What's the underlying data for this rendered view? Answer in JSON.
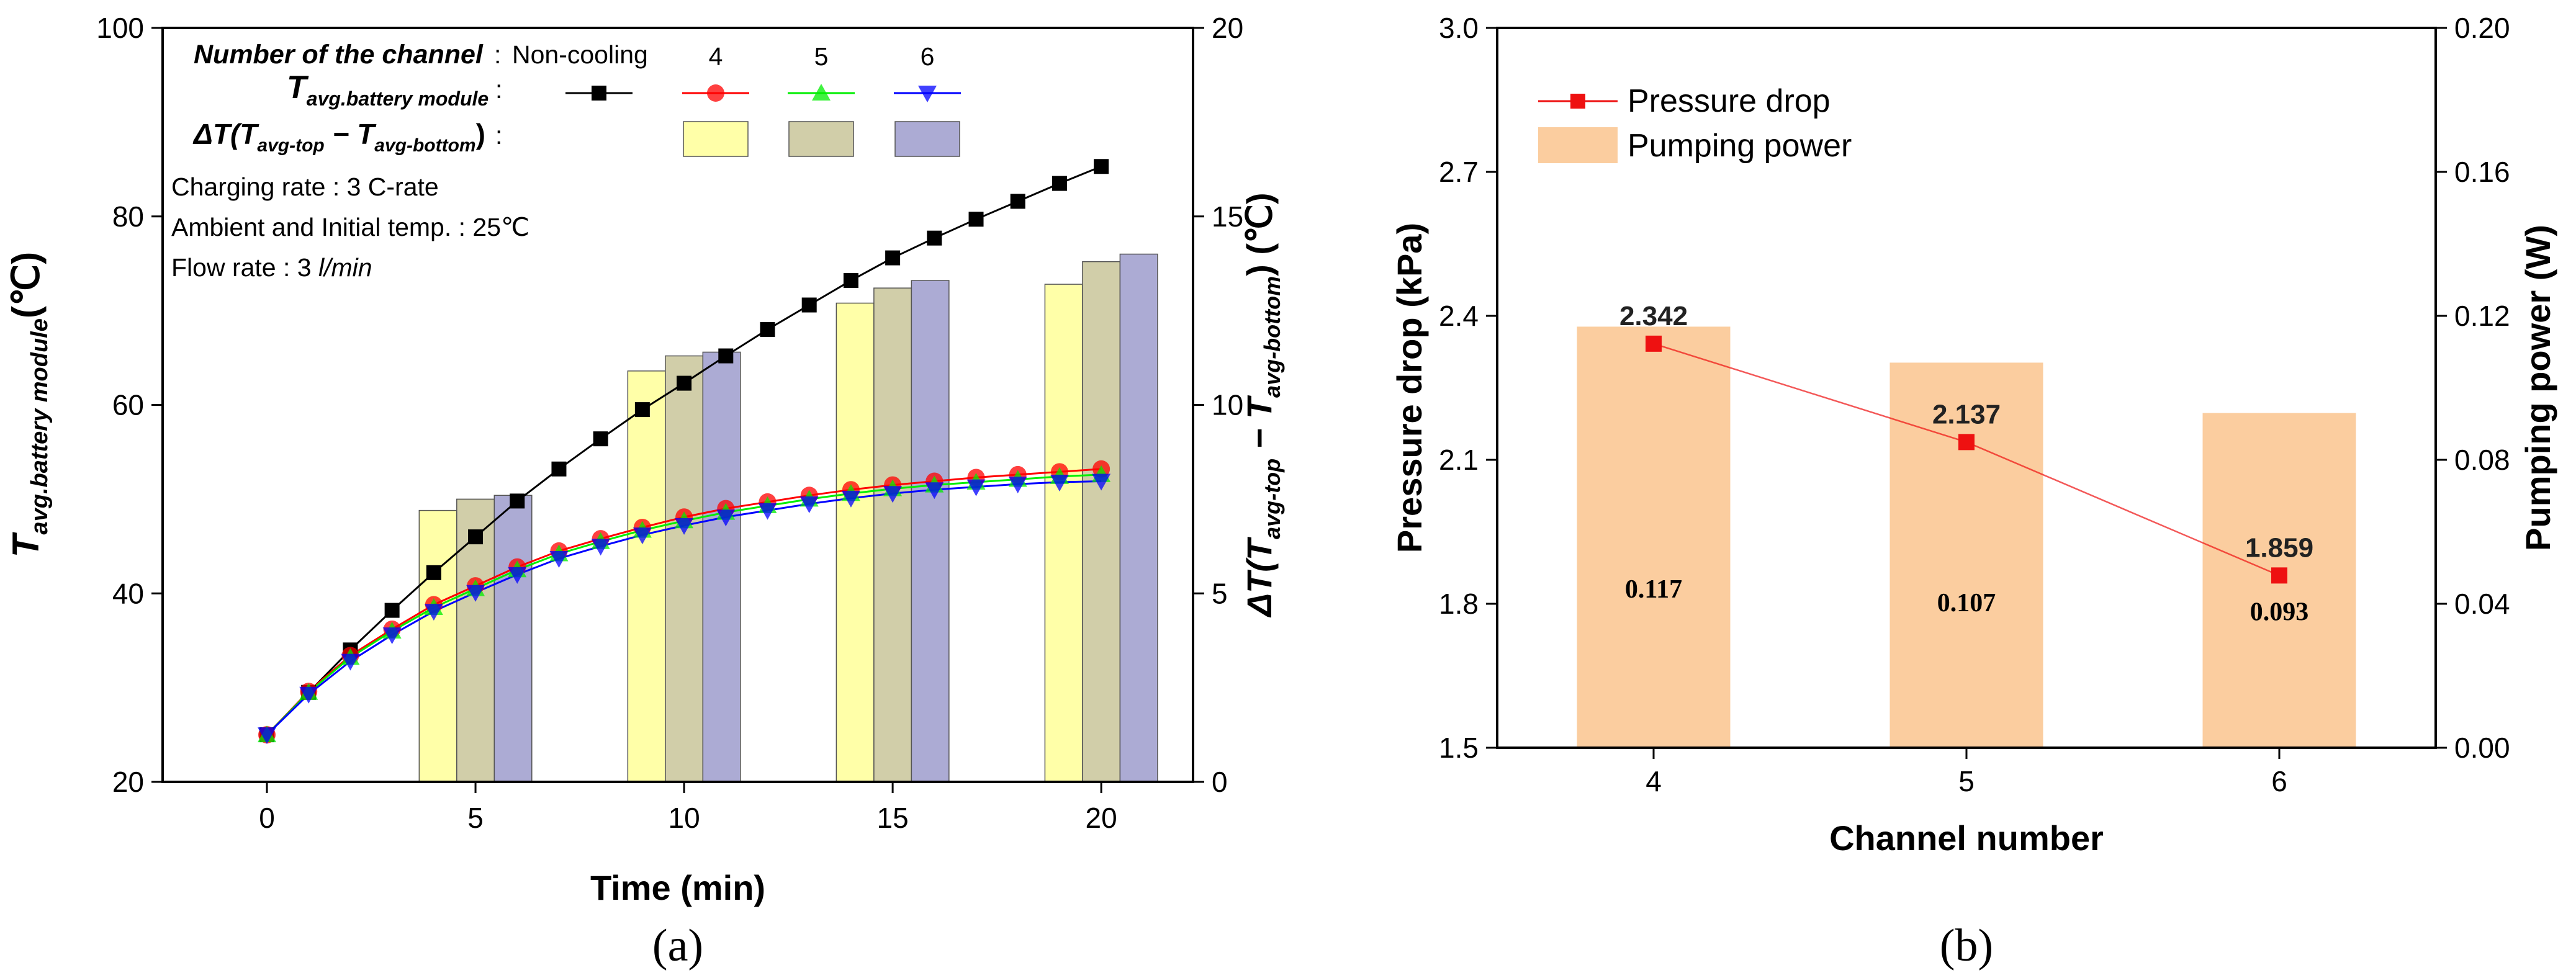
{
  "chart_data": [
    {
      "id": "a",
      "panel_label": "(a)",
      "type": "line+bar",
      "xlabel": "Time (min)",
      "ylabel": "T",
      "ylabel_sub": "avg.battery module",
      "ylabel_unit": "(℃)",
      "y2label": "ΔT(T",
      "y2label_sub1": "avg-top",
      "y2label_mid": " − T",
      "y2label_sub2": "avg-bottom",
      "y2label_unit": ") (℃)",
      "xlim": [
        -2.5,
        22.2
      ],
      "ylim": [
        20,
        100
      ],
      "y2lim": [
        0,
        20
      ],
      "xticks": [
        "0",
        "5",
        "10",
        "15",
        "20"
      ],
      "yticks": [
        "20",
        "40",
        "60",
        "80",
        "100"
      ],
      "y2ticks": [
        "0",
        "5",
        "10",
        "15",
        "20"
      ],
      "legend": {
        "header_label": "Number of the channel",
        "header_colon": ":",
        "header_noncooling": "Non-cooling",
        "header_4": "4",
        "header_5": "5",
        "header_6": "6",
        "row1_label": "T",
        "row1_sub": "avg.battery module",
        "row1_colon": ":",
        "row2_label": "ΔT(T",
        "row2_sub1": "avg-top",
        "row2_mid": " − T",
        "row2_sub2": "avg-bottom",
        "row2_end": ")",
        "row2_colon": ":"
      },
      "notes": [
        "Charging rate : 3 C-rate",
        "Ambient and Initial temp. : 25℃",
        "Flow rate : 3 "
      ],
      "note_flow_unit": "l/min",
      "series": [
        {
          "name": "Non-cooling",
          "color": "#000000",
          "marker": "square",
          "x": [
            0,
            1,
            2,
            3,
            4,
            5,
            6,
            7,
            8,
            9,
            10,
            11,
            12,
            13,
            14,
            15,
            16,
            17,
            18,
            19,
            20
          ],
          "values": [
            25,
            29.5,
            34,
            38.2,
            42.2,
            46,
            49.8,
            53.2,
            56.4,
            59.5,
            62.3,
            65.2,
            68,
            70.6,
            73.2,
            75.6,
            77.7,
            79.7,
            81.6,
            83.5,
            85.3
          ]
        },
        {
          "name": "4",
          "color": "#ff0000",
          "marker": "circle",
          "x": [
            0,
            1,
            2,
            3,
            4,
            5,
            6,
            7,
            8,
            9,
            10,
            11,
            12,
            13,
            14,
            15,
            16,
            17,
            18,
            19,
            20
          ],
          "values": [
            25,
            29.6,
            33.4,
            36.2,
            38.8,
            40.8,
            42.8,
            44.5,
            45.8,
            47,
            48.1,
            49,
            49.7,
            50.4,
            51,
            51.5,
            51.9,
            52.3,
            52.6,
            52.9,
            53.2
          ]
        },
        {
          "name": "5",
          "color": "#00ee00",
          "marker": "triangle-up",
          "x": [
            0,
            1,
            2,
            3,
            4,
            5,
            6,
            7,
            8,
            9,
            10,
            11,
            12,
            13,
            14,
            15,
            16,
            17,
            18,
            19,
            20
          ],
          "values": [
            25,
            29.5,
            33.2,
            36,
            38.5,
            40.5,
            42.5,
            44.2,
            45.5,
            46.7,
            47.7,
            48.6,
            49.3,
            50,
            50.6,
            51.1,
            51.5,
            51.8,
            52.1,
            52.4,
            52.6
          ]
        },
        {
          "name": "6",
          "color": "#0000ff",
          "marker": "triangle-down",
          "x": [
            0,
            1,
            2,
            3,
            4,
            5,
            6,
            7,
            8,
            9,
            10,
            11,
            12,
            13,
            14,
            15,
            16,
            17,
            18,
            19,
            20
          ],
          "values": [
            25,
            29.3,
            32.8,
            35.6,
            38.1,
            40.1,
            42,
            43.7,
            45,
            46.2,
            47.2,
            48.1,
            48.8,
            49.5,
            50.1,
            50.6,
            51,
            51.3,
            51.6,
            51.8,
            51.9
          ]
        }
      ],
      "bar_series": [
        {
          "name": "4",
          "color": "#ffff99",
          "x": [
            4.1,
            9.1,
            14.1,
            19.1
          ],
          "values": [
            7.2,
            10.9,
            12.7,
            13.2
          ]
        },
        {
          "name": "5",
          "color": "#c9c69a",
          "x": [
            5,
            10,
            15,
            20
          ],
          "values": [
            7.5,
            11.3,
            13.1,
            13.8
          ]
        },
        {
          "name": "6",
          "color": "#9d9ccc",
          "x": [
            5.9,
            10.9,
            15.9,
            20.9
          ],
          "values": [
            7.6,
            11.4,
            13.3,
            14.0
          ]
        }
      ]
    },
    {
      "id": "b",
      "panel_label": "(b)",
      "type": "bar+line",
      "xlabel": "Channel number",
      "ylabel": "Pressure drop (kPa)",
      "y2label": "Pumping power (W)",
      "categories": [
        "4",
        "5",
        "6"
      ],
      "ylim": [
        1.5,
        3.0
      ],
      "y2lim": [
        0,
        0.2
      ],
      "yticks": [
        "1.5",
        "1.8",
        "2.1",
        "2.4",
        "2.7",
        "3.0"
      ],
      "y2ticks": [
        "0.00",
        "0.04",
        "0.08",
        "0.12",
        "0.16",
        "0.20"
      ],
      "series": [
        {
          "name": "Pressure drop",
          "type": "line",
          "axis": "left",
          "color": "#ee1111",
          "values": [
            2.342,
            2.137,
            1.859
          ],
          "labels": [
            "2.342",
            "2.137",
            "1.859"
          ]
        },
        {
          "name": "Pumping power",
          "type": "bar",
          "axis": "right",
          "color": "#fbcd9f",
          "values": [
            0.117,
            0.107,
            0.093
          ],
          "labels": [
            "0.117",
            "0.107",
            "0.093"
          ]
        }
      ]
    }
  ]
}
